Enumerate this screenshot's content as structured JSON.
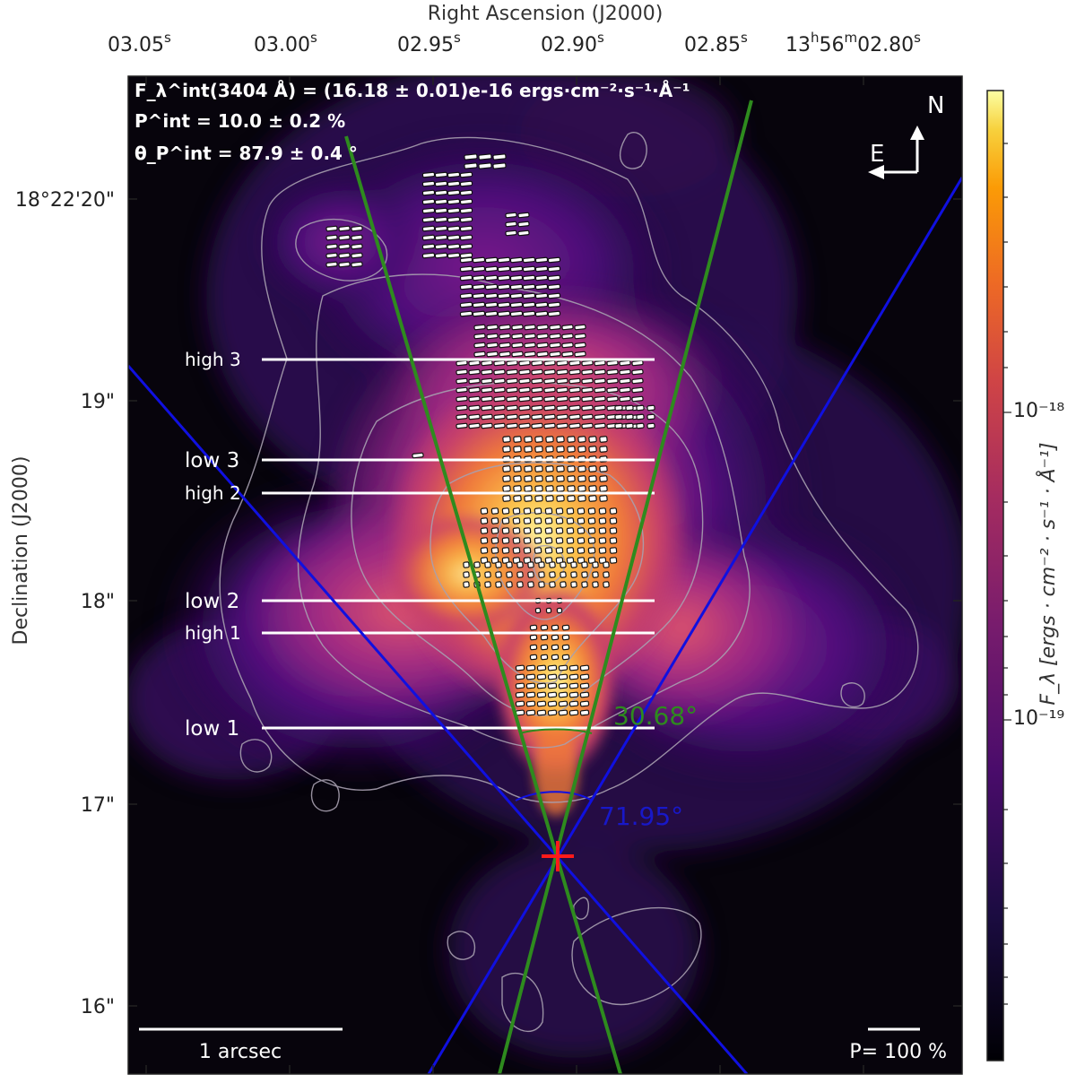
{
  "axes": {
    "x_title": "Right Ascension (J2000)",
    "y_title": "Declination (J2000)",
    "x_ticks": [
      "03.05",
      "03.00",
      "02.95",
      "02.90",
      "02.85",
      "13h56m02.80"
    ],
    "x_tick_sup": "s",
    "x_last_prefix_h": "13",
    "x_last_prefix_m": "56",
    "x_last_value": "02.80",
    "y_ticks": [
      "18°22'20\"",
      "19\"",
      "18\"",
      "17\"",
      "16\""
    ]
  },
  "header": {
    "flux_line": "F_λ^int(3404 Å) = (16.18 ± 0.01)e-16 ergs·cm⁻²·s⁻¹·Å⁻¹",
    "pol_line": "P^int = 10.0 ± 0.2 %",
    "theta_line": "θ_P^int = 87.9 ± 0.4 °"
  },
  "compass": {
    "north": "N",
    "east": "E"
  },
  "regions": [
    {
      "label": "high 3"
    },
    {
      "label": "low 3"
    },
    {
      "label": "high 2"
    },
    {
      "label": "low 2"
    },
    {
      "label": "high 1"
    },
    {
      "label": "low 1"
    }
  ],
  "angles": {
    "green": "30.68°",
    "blue": "71.95°"
  },
  "scalebar": {
    "label": "1 arcsec"
  },
  "pol_scale": {
    "label": "P= 100 %"
  },
  "colorbar": {
    "label": "F_λ [ergs · cm⁻² · s⁻¹ · Å⁻¹]",
    "ticks": [
      "10⁻¹⁸",
      "10⁻¹⁹"
    ]
  },
  "colors": {
    "green_cone": "#2e8b1e",
    "blue_cone": "#1010e0",
    "nucleus_marker": "#ff1a1a",
    "contour": "#a8a0b0",
    "vector": "#ffffff"
  }
}
